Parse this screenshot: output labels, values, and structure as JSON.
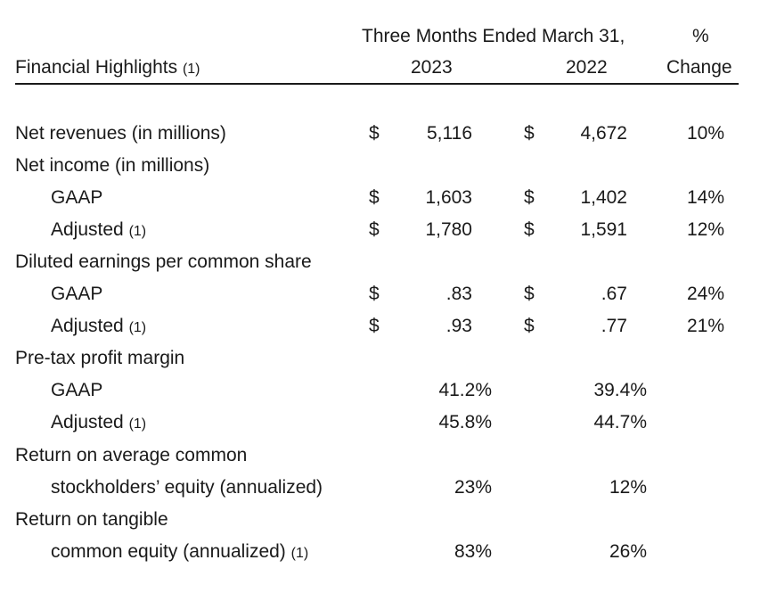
{
  "header": {
    "period": "Three Months Ended March 31,",
    "pct_line1": "%",
    "title": "Financial Highlights",
    "title_note": "(1)",
    "year1": "2023",
    "year2": "2022",
    "pct_line2": "Change"
  },
  "rows": [
    {
      "label": "Net revenues (in millions)",
      "note": "",
      "cur": "$",
      "v2023": "5,116",
      "v2022": "4,672",
      "change": "10%"
    },
    {
      "label": "Net income (in millions)",
      "note": ""
    },
    {
      "label": "GAAP",
      "note": "",
      "cur": "$",
      "v2023": "1,603",
      "v2022": "1,402",
      "change": "14%"
    },
    {
      "label": "Adjusted",
      "note": "(1)",
      "cur": "$",
      "v2023": "1,780",
      "v2022": "1,591",
      "change": "12%"
    },
    {
      "label": "Diluted earnings per common share",
      "note": ""
    },
    {
      "label": "GAAP",
      "note": "",
      "cur": "$",
      "v2023": ".83",
      "v2022": ".67",
      "change": "24%"
    },
    {
      "label": "Adjusted",
      "note": "(1)",
      "cur": "$",
      "v2023": ".93",
      "v2022": ".77",
      "change": "21%"
    },
    {
      "label": "Pre-tax profit margin",
      "note": ""
    },
    {
      "label": "GAAP",
      "note": "",
      "v2023": "41.2%",
      "v2022": "39.4%"
    },
    {
      "label": "Adjusted",
      "note": "(1)",
      "v2023": "45.8%",
      "v2022": "44.7%"
    },
    {
      "label": "Return on average common",
      "note": ""
    },
    {
      "label": "stockholders’ equity (annualized)",
      "note": "",
      "v2023": "23%",
      "v2022": "12%"
    },
    {
      "label": "Return on tangible",
      "note": ""
    },
    {
      "label": "common equity (annualized)",
      "note": "(1)",
      "v2023": "83%",
      "v2022": "26%"
    }
  ]
}
